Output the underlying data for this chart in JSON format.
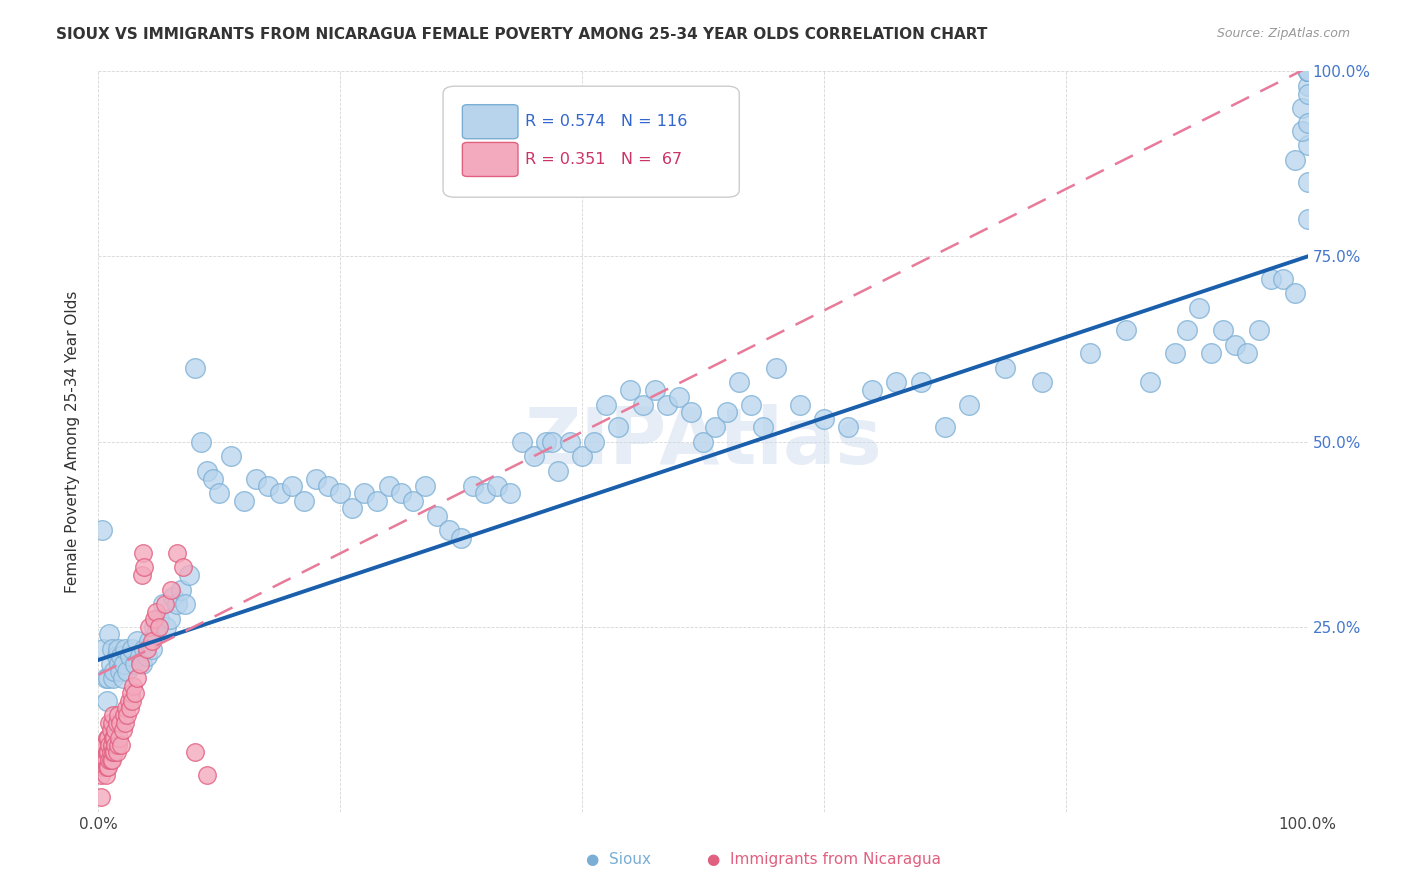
{
  "title": "SIOUX VS IMMIGRANTS FROM NICARAGUA FEMALE POVERTY AMONG 25-34 YEAR OLDS CORRELATION CHART",
  "source": "Source: ZipAtlas.com",
  "ylabel": "Female Poverty Among 25-34 Year Olds",
  "xlim": [
    0,
    1.0
  ],
  "ylim": [
    0,
    1.0
  ],
  "sioux_color": "#b8d4ed",
  "sioux_edge": "#7aaed4",
  "nicaragua_color": "#f4aabe",
  "nicaragua_edge": "#e06080",
  "line_sioux_color": "#1a5fac",
  "line_sioux_intercept": 0.205,
  "line_sioux_slope": 0.545,
  "line_nica_color": "#e87a9a",
  "line_nica_intercept": 0.185,
  "line_nica_slope": 0.82,
  "watermark": "ZIPAtlas",
  "sioux_points": [
    [
      0.003,
      0.38
    ],
    [
      0.004,
      0.22
    ],
    [
      0.006,
      0.18
    ],
    [
      0.007,
      0.15
    ],
    [
      0.008,
      0.18
    ],
    [
      0.009,
      0.24
    ],
    [
      0.01,
      0.2
    ],
    [
      0.011,
      0.22
    ],
    [
      0.012,
      0.18
    ],
    [
      0.013,
      0.19
    ],
    [
      0.015,
      0.21
    ],
    [
      0.016,
      0.22
    ],
    [
      0.017,
      0.2
    ],
    [
      0.018,
      0.19
    ],
    [
      0.019,
      0.21
    ],
    [
      0.02,
      0.18
    ],
    [
      0.021,
      0.2
    ],
    [
      0.022,
      0.22
    ],
    [
      0.024,
      0.19
    ],
    [
      0.026,
      0.21
    ],
    [
      0.028,
      0.22
    ],
    [
      0.03,
      0.2
    ],
    [
      0.032,
      0.23
    ],
    [
      0.034,
      0.21
    ],
    [
      0.036,
      0.2
    ],
    [
      0.038,
      0.22
    ],
    [
      0.04,
      0.21
    ],
    [
      0.042,
      0.23
    ],
    [
      0.044,
      0.22
    ],
    [
      0.046,
      0.25
    ],
    [
      0.048,
      0.24
    ],
    [
      0.05,
      0.26
    ],
    [
      0.053,
      0.28
    ],
    [
      0.056,
      0.25
    ],
    [
      0.059,
      0.26
    ],
    [
      0.062,
      0.29
    ],
    [
      0.065,
      0.28
    ],
    [
      0.068,
      0.3
    ],
    [
      0.072,
      0.28
    ],
    [
      0.075,
      0.32
    ],
    [
      0.08,
      0.6
    ],
    [
      0.085,
      0.5
    ],
    [
      0.09,
      0.46
    ],
    [
      0.095,
      0.45
    ],
    [
      0.1,
      0.43
    ],
    [
      0.11,
      0.48
    ],
    [
      0.12,
      0.42
    ],
    [
      0.13,
      0.45
    ],
    [
      0.14,
      0.44
    ],
    [
      0.15,
      0.43
    ],
    [
      0.16,
      0.44
    ],
    [
      0.17,
      0.42
    ],
    [
      0.18,
      0.45
    ],
    [
      0.19,
      0.44
    ],
    [
      0.2,
      0.43
    ],
    [
      0.21,
      0.41
    ],
    [
      0.22,
      0.43
    ],
    [
      0.23,
      0.42
    ],
    [
      0.24,
      0.44
    ],
    [
      0.25,
      0.43
    ],
    [
      0.26,
      0.42
    ],
    [
      0.27,
      0.44
    ],
    [
      0.28,
      0.4
    ],
    [
      0.29,
      0.38
    ],
    [
      0.3,
      0.37
    ],
    [
      0.31,
      0.44
    ],
    [
      0.32,
      0.43
    ],
    [
      0.33,
      0.44
    ],
    [
      0.34,
      0.43
    ],
    [
      0.35,
      0.5
    ],
    [
      0.36,
      0.48
    ],
    [
      0.37,
      0.5
    ],
    [
      0.375,
      0.5
    ],
    [
      0.38,
      0.46
    ],
    [
      0.39,
      0.5
    ],
    [
      0.4,
      0.48
    ],
    [
      0.41,
      0.5
    ],
    [
      0.42,
      0.55
    ],
    [
      0.43,
      0.52
    ],
    [
      0.44,
      0.57
    ],
    [
      0.45,
      0.55
    ],
    [
      0.46,
      0.57
    ],
    [
      0.47,
      0.55
    ],
    [
      0.48,
      0.56
    ],
    [
      0.49,
      0.54
    ],
    [
      0.5,
      0.5
    ],
    [
      0.51,
      0.52
    ],
    [
      0.52,
      0.54
    ],
    [
      0.53,
      0.58
    ],
    [
      0.54,
      0.55
    ],
    [
      0.55,
      0.52
    ],
    [
      0.56,
      0.6
    ],
    [
      0.58,
      0.55
    ],
    [
      0.6,
      0.53
    ],
    [
      0.62,
      0.52
    ],
    [
      0.64,
      0.57
    ],
    [
      0.66,
      0.58
    ],
    [
      0.68,
      0.58
    ],
    [
      0.7,
      0.52
    ],
    [
      0.72,
      0.55
    ],
    [
      0.75,
      0.6
    ],
    [
      0.78,
      0.58
    ],
    [
      0.82,
      0.62
    ],
    [
      0.85,
      0.65
    ],
    [
      0.87,
      0.58
    ],
    [
      0.89,
      0.62
    ],
    [
      0.9,
      0.65
    ],
    [
      0.91,
      0.68
    ],
    [
      0.92,
      0.62
    ],
    [
      0.93,
      0.65
    ],
    [
      0.94,
      0.63
    ],
    [
      0.95,
      0.62
    ],
    [
      0.96,
      0.65
    ],
    [
      0.97,
      0.72
    ],
    [
      0.98,
      0.72
    ],
    [
      0.99,
      0.7
    ],
    [
      1.0,
      1.0
    ],
    [
      1.0,
      0.98
    ],
    [
      1.0,
      0.9
    ],
    [
      0.99,
      0.88
    ],
    [
      0.995,
      0.92
    ],
    [
      1.0,
      0.85
    ],
    [
      1.0,
      0.8
    ],
    [
      0.995,
      0.95
    ],
    [
      1.0,
      1.0
    ],
    [
      1.0,
      1.0
    ],
    [
      1.0,
      0.97
    ],
    [
      1.0,
      0.93
    ],
    [
      1.0,
      1.0
    ],
    [
      1.0,
      1.0
    ],
    [
      1.0,
      1.0
    ],
    [
      1.0,
      1.0
    ]
  ],
  "nicaragua_points": [
    [
      0.002,
      0.05
    ],
    [
      0.003,
      0.06
    ],
    [
      0.004,
      0.07
    ],
    [
      0.004,
      0.08
    ],
    [
      0.005,
      0.06
    ],
    [
      0.005,
      0.07
    ],
    [
      0.005,
      0.09
    ],
    [
      0.006,
      0.05
    ],
    [
      0.006,
      0.07
    ],
    [
      0.007,
      0.06
    ],
    [
      0.007,
      0.08
    ],
    [
      0.007,
      0.1
    ],
    [
      0.008,
      0.06
    ],
    [
      0.008,
      0.08
    ],
    [
      0.008,
      0.1
    ],
    [
      0.009,
      0.07
    ],
    [
      0.009,
      0.09
    ],
    [
      0.009,
      0.12
    ],
    [
      0.01,
      0.07
    ],
    [
      0.01,
      0.08
    ],
    [
      0.01,
      0.11
    ],
    [
      0.011,
      0.07
    ],
    [
      0.011,
      0.09
    ],
    [
      0.011,
      0.12
    ],
    [
      0.012,
      0.08
    ],
    [
      0.012,
      0.1
    ],
    [
      0.012,
      0.13
    ],
    [
      0.013,
      0.08
    ],
    [
      0.013,
      0.1
    ],
    [
      0.014,
      0.09
    ],
    [
      0.014,
      0.11
    ],
    [
      0.015,
      0.08
    ],
    [
      0.015,
      0.12
    ],
    [
      0.016,
      0.09
    ],
    [
      0.016,
      0.13
    ],
    [
      0.017,
      0.1
    ],
    [
      0.018,
      0.12
    ],
    [
      0.019,
      0.09
    ],
    [
      0.02,
      0.11
    ],
    [
      0.021,
      0.13
    ],
    [
      0.022,
      0.12
    ],
    [
      0.023,
      0.14
    ],
    [
      0.024,
      0.13
    ],
    [
      0.025,
      0.15
    ],
    [
      0.026,
      0.14
    ],
    [
      0.027,
      0.16
    ],
    [
      0.028,
      0.15
    ],
    [
      0.029,
      0.17
    ],
    [
      0.03,
      0.16
    ],
    [
      0.032,
      0.18
    ],
    [
      0.034,
      0.2
    ],
    [
      0.036,
      0.32
    ],
    [
      0.037,
      0.35
    ],
    [
      0.038,
      0.33
    ],
    [
      0.04,
      0.22
    ],
    [
      0.042,
      0.25
    ],
    [
      0.044,
      0.23
    ],
    [
      0.046,
      0.26
    ],
    [
      0.048,
      0.27
    ],
    [
      0.05,
      0.25
    ],
    [
      0.055,
      0.28
    ],
    [
      0.06,
      0.3
    ],
    [
      0.065,
      0.35
    ],
    [
      0.07,
      0.33
    ],
    [
      0.08,
      0.08
    ],
    [
      0.09,
      0.05
    ],
    [
      0.002,
      0.02
    ]
  ]
}
